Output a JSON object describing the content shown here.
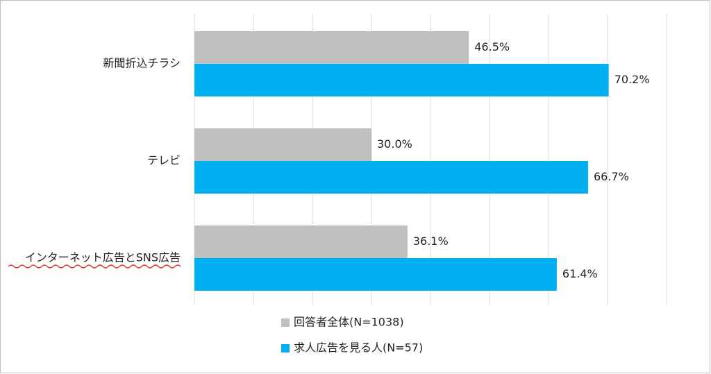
{
  "chart_data": {
    "type": "barh",
    "categories": [
      "新聞折込チラシ",
      "テレビ",
      "インターネット広告とSNS広告"
    ],
    "series": [
      {
        "name": "回答者全体(N=1038)",
        "color": "#bfbfbf",
        "values": [
          46.5,
          30.0,
          36.1
        ],
        "value_labels": [
          "46.5%",
          "30.0%",
          "36.1%"
        ]
      },
      {
        "name": "求人広告を見る人(N=57)",
        "color": "#00b0f0",
        "values": [
          70.2,
          66.7,
          61.4
        ],
        "value_labels": [
          "70.2%",
          "66.7%",
          "61.4%"
        ]
      }
    ],
    "xlim": [
      0,
      80
    ],
    "xticks": [
      0,
      10,
      20,
      30,
      40,
      50,
      60,
      70,
      80
    ],
    "grid": true,
    "legend": "bottom"
  }
}
